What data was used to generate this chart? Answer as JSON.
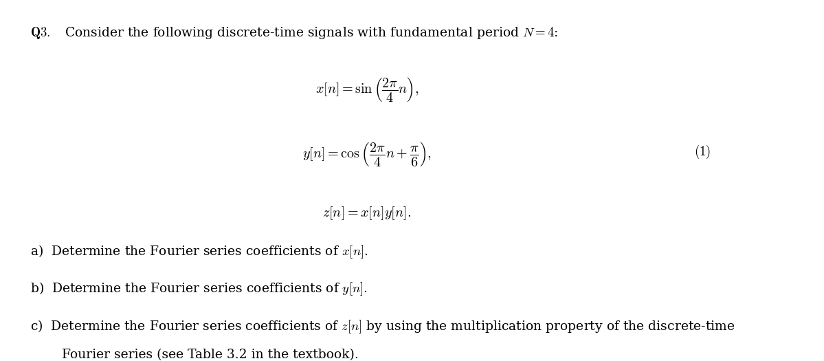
{
  "background_color": "#ffffff",
  "figsize": [
    11.99,
    5.25
  ],
  "dpi": 100,
  "header": "Q3.  Consider the following discrete-time signals with fundamental period $N = 4$:",
  "eq1": "$x[n] = \\sin\\left(\\dfrac{2\\pi}{4}n\\right),$",
  "eq2": "$y[n] = \\cos\\left(\\dfrac{2\\pi}{4}n + \\dfrac{\\pi}{6}\\right),$",
  "eq3": "$z[n] = x[n]y[n].$",
  "eq_number": "$(1)$",
  "item_a": "a)  Determine the Fourier series coefficients of $x[n]$.",
  "item_b": "b)  Determine the Fourier series coefficients of $y[n]$.",
  "item_c1": "c)  Determine the Fourier series coefficients of $z[n]$ by using the multiplication property of the discrete-time",
  "item_c2": "     Fourier series (see Table 3.2 in the textbook)."
}
